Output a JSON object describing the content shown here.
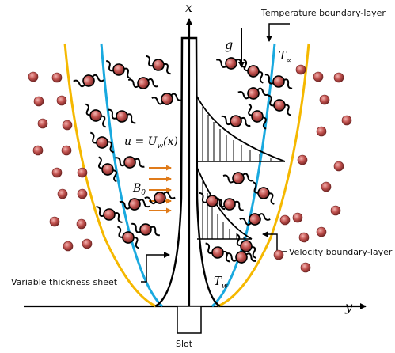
{
  "labels": {
    "axis_x": "x",
    "axis_y": "y",
    "gravity": "g",
    "t_inf": "T",
    "t_inf_sub": "∞",
    "t_w": "T",
    "t_w_sub": "w",
    "velocity_eq_prefix": "u = U",
    "velocity_eq_sub": "w",
    "velocity_eq_suffix": "(x)",
    "magnetic": "B",
    "magnetic_sub": "0",
    "temp_bl": "Temperature boundary-layer",
    "vel_bl": "Velocity boundary-layer",
    "sheet": "Variable thickness sheet",
    "slot": "Slot"
  },
  "colors": {
    "temperature_layer": "#f5b800",
    "velocity_layer": "#19a9df",
    "particle_fill": "#c0504d",
    "field_arrow": "#e07b1a",
    "line": "#000000"
  }
}
